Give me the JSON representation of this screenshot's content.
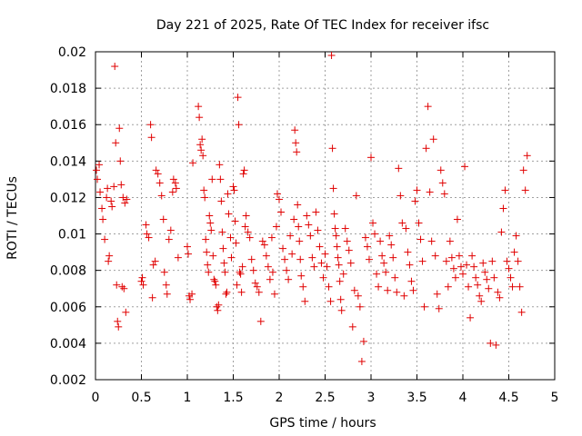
{
  "chart_data": {
    "type": "scatter",
    "title": "Day 221 of 2025, Rate Of TEC Index for receiver ifsc",
    "xlabel": "GPS time / hours",
    "ylabel": "ROTI / TECUs",
    "xlim": [
      0,
      5
    ],
    "ylim": [
      0.002,
      0.02
    ],
    "xticks": [
      0,
      0.5,
      1,
      1.5,
      2,
      2.5,
      3,
      3.5,
      4,
      4.5,
      5
    ],
    "xtick_labels": [
      "0",
      "0.5",
      "1",
      "1.5",
      "2",
      "2.5",
      "3",
      "3.5",
      "4",
      "4.5",
      "5"
    ],
    "yticks": [
      0.002,
      0.004,
      0.006,
      0.008,
      0.01,
      0.012,
      0.014,
      0.016,
      0.018,
      0.02
    ],
    "ytick_labels": [
      "0.002",
      "0.004",
      "0.006",
      "0.008",
      "0.01",
      "0.012",
      "0.014",
      "0.016",
      "0.018",
      "0.02"
    ],
    "grid": true,
    "marker": "+",
    "marker_color": "#e00000",
    "series": [
      {
        "name": "ROTI",
        "points": [
          [
            0.01,
            0.0135
          ],
          [
            0.02,
            0.013
          ],
          [
            0.04,
            0.0138
          ],
          [
            0.05,
            0.0123
          ],
          [
            0.07,
            0.0114
          ],
          [
            0.08,
            0.0108
          ],
          [
            0.1,
            0.0097
          ],
          [
            0.12,
            0.012
          ],
          [
            0.13,
            0.0125
          ],
          [
            0.14,
            0.0085
          ],
          [
            0.15,
            0.0088
          ],
          [
            0.17,
            0.0118
          ],
          [
            0.18,
            0.0115
          ],
          [
            0.2,
            0.0126
          ],
          [
            0.21,
            0.0192
          ],
          [
            0.22,
            0.015
          ],
          [
            0.23,
            0.0072
          ],
          [
            0.24,
            0.0052
          ],
          [
            0.25,
            0.0049
          ],
          [
            0.26,
            0.0158
          ],
          [
            0.27,
            0.014
          ],
          [
            0.28,
            0.0127
          ],
          [
            0.29,
            0.0071
          ],
          [
            0.3,
            0.012
          ],
          [
            0.31,
            0.007
          ],
          [
            0.32,
            0.0117
          ],
          [
            0.33,
            0.0057
          ],
          [
            0.34,
            0.0119
          ],
          [
            0.5,
            0.0074
          ],
          [
            0.51,
            0.0076
          ],
          [
            0.52,
            0.0072
          ],
          [
            0.55,
            0.0105
          ],
          [
            0.56,
            0.01
          ],
          [
            0.58,
            0.0098
          ],
          [
            0.6,
            0.016
          ],
          [
            0.61,
            0.0153
          ],
          [
            0.62,
            0.0065
          ],
          [
            0.63,
            0.0083
          ],
          [
            0.65,
            0.0085
          ],
          [
            0.66,
            0.0135
          ],
          [
            0.68,
            0.0133
          ],
          [
            0.7,
            0.0128
          ],
          [
            0.72,
            0.0121
          ],
          [
            0.74,
            0.0108
          ],
          [
            0.75,
            0.0079
          ],
          [
            0.77,
            0.0072
          ],
          [
            0.78,
            0.0067
          ],
          [
            0.8,
            0.0097
          ],
          [
            0.82,
            0.0102
          ],
          [
            0.84,
            0.0123
          ],
          [
            0.85,
            0.013
          ],
          [
            0.87,
            0.0128
          ],
          [
            0.88,
            0.0125
          ],
          [
            0.9,
            0.0087
          ],
          [
            1.0,
            0.0093
          ],
          [
            1.01,
            0.0089
          ],
          [
            1.02,
            0.0066
          ],
          [
            1.03,
            0.0064
          ],
          [
            1.05,
            0.0067
          ],
          [
            1.06,
            0.0139
          ],
          [
            1.12,
            0.017
          ],
          [
            1.13,
            0.0164
          ],
          [
            1.14,
            0.0149
          ],
          [
            1.15,
            0.0146
          ],
          [
            1.16,
            0.0152
          ],
          [
            1.17,
            0.0143
          ],
          [
            1.18,
            0.0124
          ],
          [
            1.19,
            0.012
          ],
          [
            1.2,
            0.0097
          ],
          [
            1.21,
            0.009
          ],
          [
            1.22,
            0.0083
          ],
          [
            1.23,
            0.0079
          ],
          [
            1.24,
            0.011
          ],
          [
            1.25,
            0.0106
          ],
          [
            1.26,
            0.0102
          ],
          [
            1.27,
            0.013
          ],
          [
            1.28,
            0.0088
          ],
          [
            1.29,
            0.0075
          ],
          [
            1.3,
            0.0074
          ],
          [
            1.31,
            0.0072
          ],
          [
            1.32,
            0.006
          ],
          [
            1.33,
            0.0058
          ],
          [
            1.34,
            0.0061
          ],
          [
            1.35,
            0.0138
          ],
          [
            1.36,
            0.013
          ],
          [
            1.37,
            0.0118
          ],
          [
            1.38,
            0.0101
          ],
          [
            1.39,
            0.0092
          ],
          [
            1.4,
            0.0084
          ],
          [
            1.41,
            0.0079
          ],
          [
            1.42,
            0.0067
          ],
          [
            1.43,
            0.0068
          ],
          [
            1.44,
            0.0122
          ],
          [
            1.45,
            0.0111
          ],
          [
            1.47,
            0.0098
          ],
          [
            1.48,
            0.0087
          ],
          [
            1.5,
            0.0126
          ],
          [
            1.51,
            0.0124
          ],
          [
            1.52,
            0.0107
          ],
          [
            1.53,
            0.0095
          ],
          [
            1.54,
            0.0072
          ],
          [
            1.55,
            0.0175
          ],
          [
            1.56,
            0.016
          ],
          [
            1.57,
            0.0079
          ],
          [
            1.58,
            0.0078
          ],
          [
            1.59,
            0.0068
          ],
          [
            1.6,
            0.0082
          ],
          [
            1.61,
            0.0133
          ],
          [
            1.62,
            0.0135
          ],
          [
            1.63,
            0.0104
          ],
          [
            1.64,
            0.011
          ],
          [
            1.66,
            0.0101
          ],
          [
            1.68,
            0.0098
          ],
          [
            1.7,
            0.0086
          ],
          [
            1.72,
            0.008
          ],
          [
            1.74,
            0.0073
          ],
          [
            1.76,
            0.0071
          ],
          [
            1.78,
            0.0068
          ],
          [
            1.8,
            0.0052
          ],
          [
            1.82,
            0.0096
          ],
          [
            1.84,
            0.0094
          ],
          [
            1.86,
            0.0088
          ],
          [
            1.88,
            0.0082
          ],
          [
            1.9,
            0.0075
          ],
          [
            1.92,
            0.0098
          ],
          [
            1.93,
            0.0079
          ],
          [
            1.95,
            0.0067
          ],
          [
            1.97,
            0.0104
          ],
          [
            1.98,
            0.0122
          ],
          [
            2.0,
            0.0119
          ],
          [
            2.02,
            0.0112
          ],
          [
            2.04,
            0.0092
          ],
          [
            2.06,
            0.0086
          ],
          [
            2.08,
            0.008
          ],
          [
            2.1,
            0.0075
          ],
          [
            2.12,
            0.0099
          ],
          [
            2.14,
            0.0089
          ],
          [
            2.16,
            0.0108
          ],
          [
            2.17,
            0.0157
          ],
          [
            2.18,
            0.015
          ],
          [
            2.19,
            0.0145
          ],
          [
            2.2,
            0.0116
          ],
          [
            2.21,
            0.0104
          ],
          [
            2.22,
            0.0096
          ],
          [
            2.23,
            0.0086
          ],
          [
            2.24,
            0.0077
          ],
          [
            2.26,
            0.0071
          ],
          [
            2.28,
            0.0063
          ],
          [
            2.3,
            0.011
          ],
          [
            2.32,
            0.0105
          ],
          [
            2.34,
            0.0099
          ],
          [
            2.36,
            0.0087
          ],
          [
            2.38,
            0.0082
          ],
          [
            2.4,
            0.0112
          ],
          [
            2.42,
            0.0102
          ],
          [
            2.44,
            0.0093
          ],
          [
            2.46,
            0.0084
          ],
          [
            2.48,
            0.0076
          ],
          [
            2.5,
            0.0089
          ],
          [
            2.52,
            0.0082
          ],
          [
            2.54,
            0.0071
          ],
          [
            2.56,
            0.0063
          ],
          [
            2.57,
            0.0198
          ],
          [
            2.58,
            0.0147
          ],
          [
            2.59,
            0.0125
          ],
          [
            2.6,
            0.0111
          ],
          [
            2.61,
            0.0103
          ],
          [
            2.62,
            0.0099
          ],
          [
            2.63,
            0.0093
          ],
          [
            2.64,
            0.0087
          ],
          [
            2.65,
            0.0083
          ],
          [
            2.66,
            0.0074
          ],
          [
            2.67,
            0.0064
          ],
          [
            2.68,
            0.0058
          ],
          [
            2.7,
            0.0078
          ],
          [
            2.72,
            0.0103
          ],
          [
            2.74,
            0.0096
          ],
          [
            2.76,
            0.0091
          ],
          [
            2.78,
            0.0084
          ],
          [
            2.8,
            0.0049
          ],
          [
            2.82,
            0.0069
          ],
          [
            2.84,
            0.0121
          ],
          [
            2.86,
            0.0066
          ],
          [
            2.88,
            0.006
          ],
          [
            2.9,
            0.003
          ],
          [
            2.92,
            0.0041
          ],
          [
            2.94,
            0.0098
          ],
          [
            2.96,
            0.0093
          ],
          [
            2.98,
            0.0086
          ],
          [
            3.0,
            0.0142
          ],
          [
            3.02,
            0.0106
          ],
          [
            3.04,
            0.01
          ],
          [
            3.06,
            0.0078
          ],
          [
            3.08,
            0.0071
          ],
          [
            3.1,
            0.0096
          ],
          [
            3.12,
            0.0088
          ],
          [
            3.14,
            0.0084
          ],
          [
            3.16,
            0.0079
          ],
          [
            3.18,
            0.0069
          ],
          [
            3.2,
            0.0099
          ],
          [
            3.22,
            0.0094
          ],
          [
            3.24,
            0.0087
          ],
          [
            3.26,
            0.0076
          ],
          [
            3.28,
            0.0068
          ],
          [
            3.3,
            0.0136
          ],
          [
            3.32,
            0.0121
          ],
          [
            3.34,
            0.0106
          ],
          [
            3.36,
            0.0066
          ],
          [
            3.38,
            0.0103
          ],
          [
            3.4,
            0.009
          ],
          [
            3.42,
            0.0083
          ],
          [
            3.44,
            0.0074
          ],
          [
            3.46,
            0.0069
          ],
          [
            3.48,
            0.0118
          ],
          [
            3.5,
            0.0124
          ],
          [
            3.52,
            0.0106
          ],
          [
            3.54,
            0.0097
          ],
          [
            3.56,
            0.0085
          ],
          [
            3.58,
            0.006
          ],
          [
            3.6,
            0.0147
          ],
          [
            3.62,
            0.017
          ],
          [
            3.64,
            0.0123
          ],
          [
            3.66,
            0.0096
          ],
          [
            3.68,
            0.0152
          ],
          [
            3.7,
            0.0088
          ],
          [
            3.72,
            0.0067
          ],
          [
            3.74,
            0.0059
          ],
          [
            3.76,
            0.0135
          ],
          [
            3.78,
            0.0128
          ],
          [
            3.8,
            0.0122
          ],
          [
            3.82,
            0.0085
          ],
          [
            3.84,
            0.0071
          ],
          [
            3.86,
            0.0096
          ],
          [
            3.88,
            0.0087
          ],
          [
            3.9,
            0.0081
          ],
          [
            3.92,
            0.0076
          ],
          [
            3.94,
            0.0108
          ],
          [
            3.96,
            0.0088
          ],
          [
            3.98,
            0.0082
          ],
          [
            4.0,
            0.0078
          ],
          [
            4.02,
            0.0137
          ],
          [
            4.04,
            0.0083
          ],
          [
            4.06,
            0.0071
          ],
          [
            4.08,
            0.0054
          ],
          [
            4.1,
            0.0088
          ],
          [
            4.12,
            0.0082
          ],
          [
            4.14,
            0.0076
          ],
          [
            4.16,
            0.0072
          ],
          [
            4.18,
            0.0066
          ],
          [
            4.2,
            0.0063
          ],
          [
            4.22,
            0.0084
          ],
          [
            4.24,
            0.0079
          ],
          [
            4.26,
            0.0075
          ],
          [
            4.28,
            0.007
          ],
          [
            4.3,
            0.004
          ],
          [
            4.32,
            0.0085
          ],
          [
            4.34,
            0.0076
          ],
          [
            4.36,
            0.0039
          ],
          [
            4.38,
            0.0068
          ],
          [
            4.4,
            0.0065
          ],
          [
            4.42,
            0.0101
          ],
          [
            4.44,
            0.0114
          ],
          [
            4.46,
            0.0124
          ],
          [
            4.48,
            0.0085
          ],
          [
            4.5,
            0.0081
          ],
          [
            4.52,
            0.0076
          ],
          [
            4.54,
            0.0071
          ],
          [
            4.56,
            0.009
          ],
          [
            4.58,
            0.0099
          ],
          [
            4.6,
            0.0085
          ],
          [
            4.62,
            0.0071
          ],
          [
            4.64,
            0.0057
          ],
          [
            4.66,
            0.0135
          ],
          [
            4.68,
            0.0124
          ],
          [
            4.7,
            0.0143
          ]
        ]
      }
    ]
  }
}
